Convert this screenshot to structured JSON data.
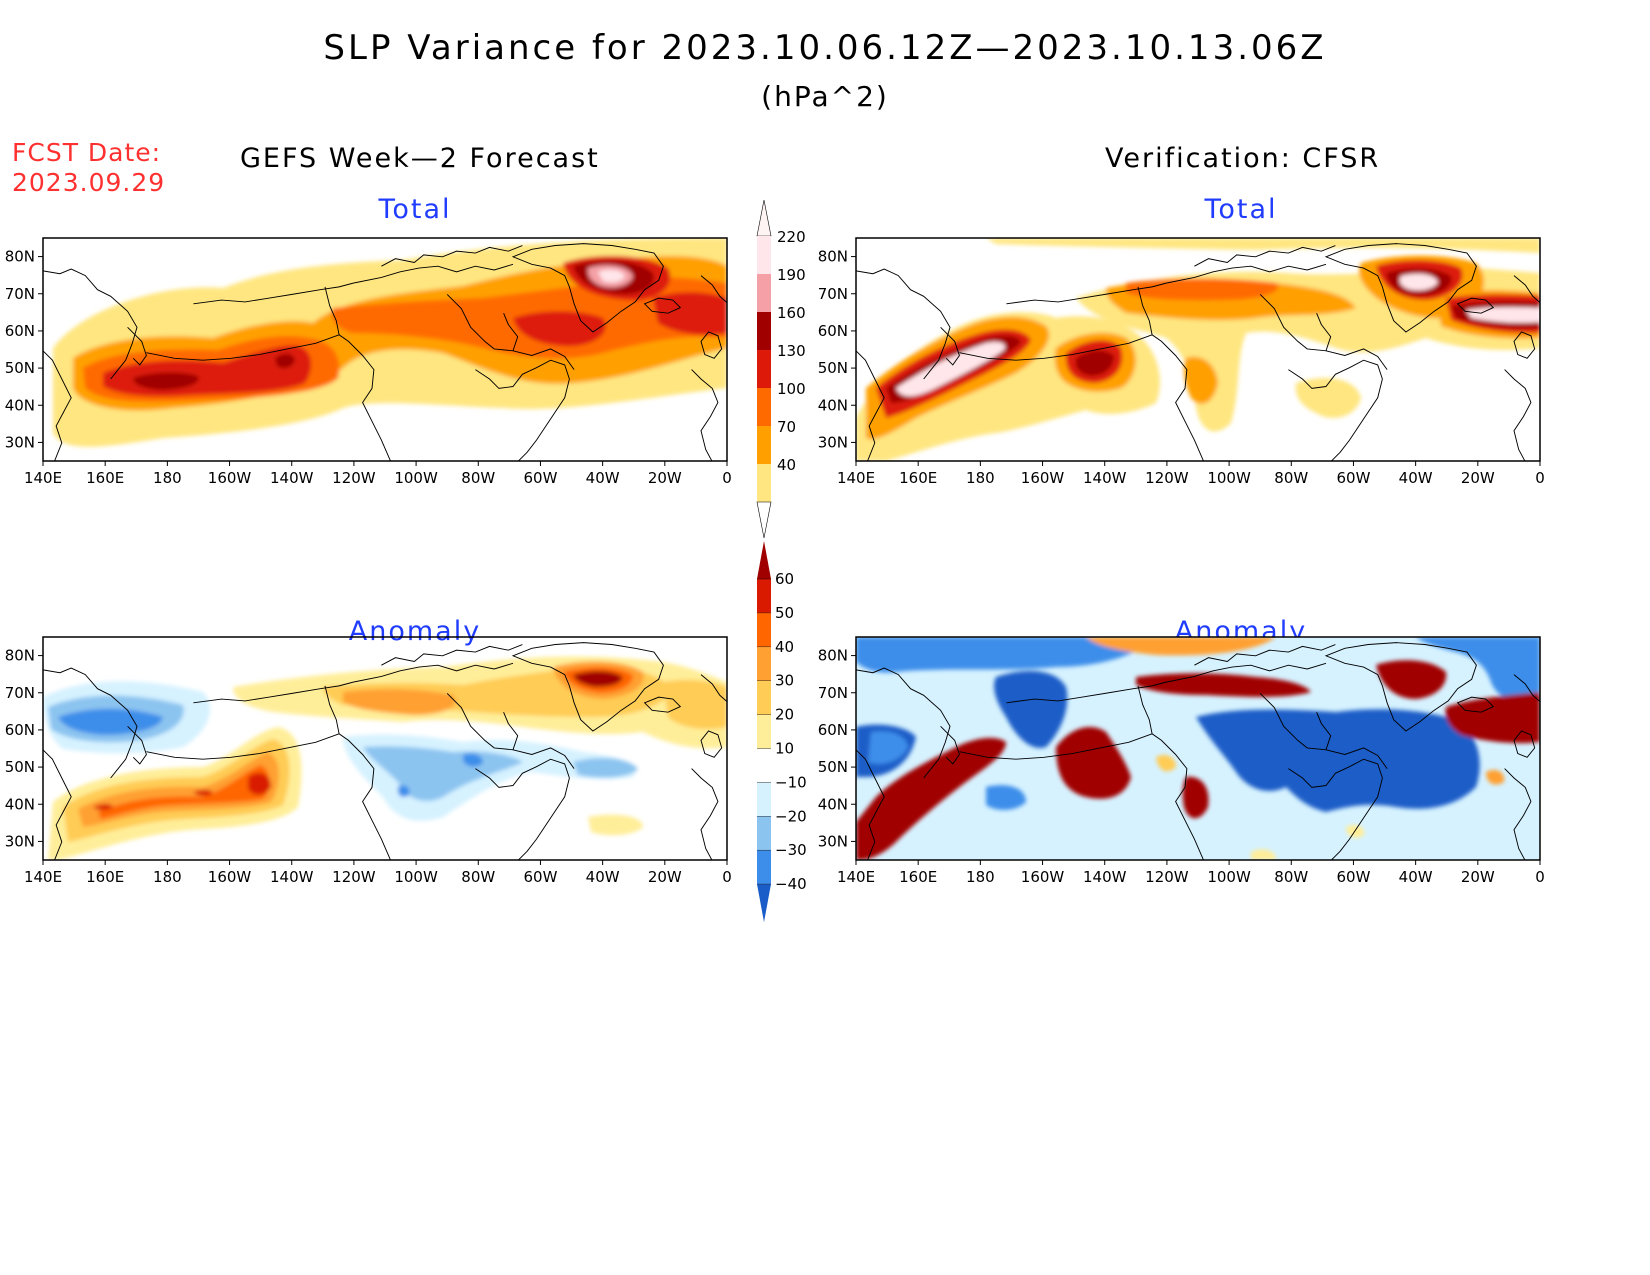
{
  "title": "SLP Variance for 2023.10.06.12Z—2023.10.13.06Z",
  "units": "(hPa^2)",
  "fcst": {
    "label": "FCST Date:",
    "date": "2023.09.29"
  },
  "left_header": "GEFS Week—2 Forecast",
  "right_header": "Verification: CFSR",
  "panel_titles": {
    "total": "Total",
    "anomaly": "Anomaly"
  },
  "chart_data": [
    {
      "type": "heatmap",
      "title": "Total",
      "source": "GEFS Week—2 Forecast",
      "x_ticks": [
        "140E",
        "160E",
        "180",
        "160W",
        "140W",
        "120W",
        "100W",
        "80W",
        "60W",
        "40W",
        "20W",
        "0"
      ],
      "y_ticks": [
        "30N",
        "40N",
        "50N",
        "60N",
        "70N",
        "80N"
      ],
      "regions": [
        {
          "lon": 178,
          "lat": 47,
          "value": 150
        },
        {
          "lon": -148,
          "lat": 51,
          "value": 155
        },
        {
          "lon": -40,
          "lat": 72,
          "value": 225
        },
        {
          "lon": -55,
          "lat": 62,
          "value": 145
        },
        {
          "lon": -15,
          "lat": 63,
          "value": 150
        },
        {
          "lon": -100,
          "lat": 62,
          "value": 110
        }
      ]
    },
    {
      "type": "heatmap",
      "title": "Total",
      "source": "Verification: CFSR",
      "x_ticks": [
        "140E",
        "160E",
        "180",
        "160W",
        "140W",
        "120W",
        "100W",
        "80W",
        "60W",
        "40W",
        "20W",
        "0"
      ],
      "y_ticks": [
        "30N",
        "40N",
        "50N",
        "60N",
        "70N",
        "80N"
      ],
      "regions": [
        {
          "lon": 170,
          "lat": 47,
          "value": 230
        },
        {
          "lon": -140,
          "lat": 53,
          "value": 190
        },
        {
          "lon": -40,
          "lat": 72,
          "value": 225
        },
        {
          "lon": -5,
          "lat": 62,
          "value": 225
        },
        {
          "lon": -102,
          "lat": 42,
          "value": 110
        },
        {
          "lon": -110,
          "lat": 68,
          "value": 120
        }
      ]
    },
    {
      "type": "heatmap",
      "title": "Anomaly",
      "source": "GEFS Week—2 Forecast",
      "x_ticks": [
        "140E",
        "160E",
        "180",
        "160W",
        "140W",
        "120W",
        "100W",
        "80W",
        "60W",
        "40W",
        "20W",
        "0"
      ],
      "y_ticks": [
        "30N",
        "40N",
        "50N",
        "60N",
        "70N",
        "80N"
      ],
      "regions": [
        {
          "lon": 165,
          "lat": 42,
          "value": 45
        },
        {
          "lon": -148,
          "lat": 48,
          "value": 55
        },
        {
          "lon": -40,
          "lat": 72,
          "value": 62
        },
        {
          "lon": 165,
          "lat": 62,
          "value": -30
        },
        {
          "lon": -100,
          "lat": 44,
          "value": -30
        },
        {
          "lon": -5,
          "lat": 68,
          "value": 25
        }
      ]
    },
    {
      "type": "heatmap",
      "title": "Anomaly",
      "source": "Verification: CFSR",
      "x_ticks": [
        "140E",
        "160E",
        "180",
        "160W",
        "140W",
        "120W",
        "100W",
        "80W",
        "60W",
        "40W",
        "20W",
        "0"
      ],
      "y_ticks": [
        "30N",
        "40N",
        "50N",
        "60N",
        "70N",
        "80N"
      ],
      "regions": [
        {
          "lon": 165,
          "lat": 45,
          "value": 65
        },
        {
          "lon": -140,
          "lat": 52,
          "value": 65
        },
        {
          "lon": -40,
          "lat": 72,
          "value": 65
        },
        {
          "lon": -5,
          "lat": 63,
          "value": 65
        },
        {
          "lon": -60,
          "lat": 52,
          "value": -45
        },
        {
          "lon": 160,
          "lat": 55,
          "value": -40
        },
        {
          "lon": -120,
          "lat": 70,
          "value": 60
        }
      ]
    }
  ],
  "colorbars": [
    {
      "name": "total",
      "labels": [
        "220",
        "190",
        "160",
        "130",
        "100",
        "70",
        "40"
      ],
      "colors": [
        "#ffe6ea",
        "#f4a0a6",
        "#a00000",
        "#dd1a0a",
        "#ff6a00",
        "#ffa000",
        "#ffe680"
      ]
    },
    {
      "name": "anomaly",
      "labels": [
        "60",
        "50",
        "40",
        "30",
        "20",
        "10",
        "−10",
        "−20",
        "−30",
        "−40"
      ],
      "colors": [
        "#a00000",
        "#d91a00",
        "#ff6600",
        "#ffa033",
        "#ffcc55",
        "#ffee99",
        "#ffffff",
        "#d6f2ff",
        "#8cc4f0",
        "#3d8eea",
        "#1a5dc8"
      ]
    }
  ]
}
